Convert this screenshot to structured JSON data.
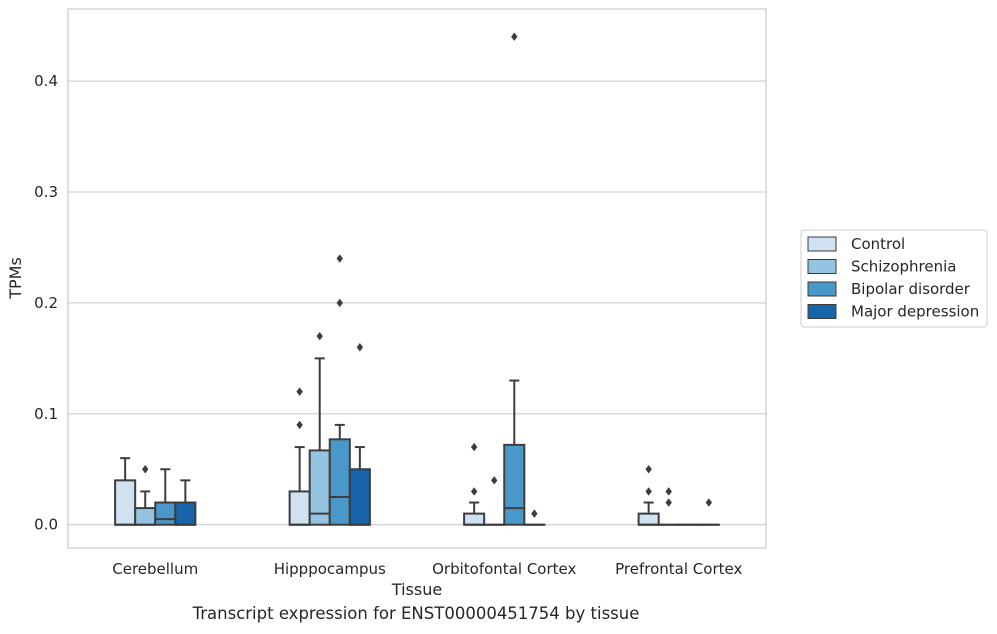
{
  "chart_data": {
    "type": "box",
    "xlabel": "Tissue",
    "ylabel": "TPMs",
    "ylim": [
      -0.021,
      0.465
    ],
    "yticks": [
      0.0,
      0.1,
      0.2,
      0.3,
      0.4
    ],
    "ytick_labels": [
      "0.0",
      "0.1",
      "0.2",
      "0.3",
      "0.4"
    ],
    "grid": "horizontal",
    "legend_position": "right",
    "categories": [
      "Cerebellum",
      "Hipppocampus",
      "Orbitofontal Cortex",
      "Prefrontal Cortex"
    ],
    "series": [
      {
        "name": "Control",
        "color": "#d0e1f2",
        "boxes": [
          {
            "q1": 0.0,
            "median": 0.0,
            "q3": 0.04,
            "whisker_low": 0.0,
            "whisker_high": 0.06,
            "outliers": []
          },
          {
            "q1": 0.0,
            "median": 0.0,
            "q3": 0.03,
            "whisker_low": 0.0,
            "whisker_high": 0.07,
            "outliers": [
              0.09,
              0.12
            ]
          },
          {
            "q1": 0.0,
            "median": 0.0,
            "q3": 0.01,
            "whisker_low": 0.0,
            "whisker_high": 0.02,
            "outliers": [
              0.03,
              0.07
            ]
          },
          {
            "q1": 0.0,
            "median": 0.0,
            "q3": 0.01,
            "whisker_low": 0.0,
            "whisker_high": 0.02,
            "outliers": [
              0.03,
              0.05
            ]
          }
        ]
      },
      {
        "name": "Schizophrenia",
        "color": "#94c4df",
        "boxes": [
          {
            "q1": 0.0,
            "median": 0.0,
            "q3": 0.015,
            "whisker_low": 0.0,
            "whisker_high": 0.03,
            "outliers": [
              0.05
            ]
          },
          {
            "q1": 0.0,
            "median": 0.01,
            "q3": 0.067,
            "whisker_low": 0.0,
            "whisker_high": 0.15,
            "outliers": [
              0.17
            ]
          },
          {
            "q1": 0.0,
            "median": 0.0,
            "q3": 0.0,
            "whisker_low": 0.0,
            "whisker_high": 0.0,
            "outliers": [
              0.04
            ]
          },
          {
            "q1": 0.0,
            "median": 0.0,
            "q3": 0.0,
            "whisker_low": 0.0,
            "whisker_high": 0.0,
            "outliers": [
              0.02,
              0.03
            ]
          }
        ]
      },
      {
        "name": "Bipolar disorder",
        "color": "#4a98c9",
        "boxes": [
          {
            "q1": 0.0,
            "median": 0.005,
            "q3": 0.02,
            "whisker_low": 0.0,
            "whisker_high": 0.05,
            "outliers": []
          },
          {
            "q1": 0.0,
            "median": 0.025,
            "q3": 0.077,
            "whisker_low": 0.0,
            "whisker_high": 0.09,
            "outliers": [
              0.2,
              0.24
            ]
          },
          {
            "q1": 0.0,
            "median": 0.015,
            "q3": 0.072,
            "whisker_low": 0.0,
            "whisker_high": 0.13,
            "outliers": [
              0.44
            ]
          },
          {
            "q1": 0.0,
            "median": 0.0,
            "q3": 0.0,
            "whisker_low": 0.0,
            "whisker_high": 0.0,
            "outliers": []
          }
        ]
      },
      {
        "name": "Major depression",
        "color": "#1764ab",
        "boxes": [
          {
            "q1": 0.0,
            "median": 0.0,
            "q3": 0.02,
            "whisker_low": 0.0,
            "whisker_high": 0.04,
            "outliers": []
          },
          {
            "q1": 0.0,
            "median": 0.0,
            "q3": 0.05,
            "whisker_low": 0.0,
            "whisker_high": 0.07,
            "outliers": [
              0.16
            ]
          },
          {
            "q1": 0.0,
            "median": 0.0,
            "q3": 0.0,
            "whisker_low": 0.0,
            "whisker_high": 0.0,
            "outliers": [
              0.01
            ]
          },
          {
            "q1": 0.0,
            "median": 0.0,
            "q3": 0.0,
            "whisker_low": 0.0,
            "whisker_high": 0.0,
            "outliers": [
              0.02
            ]
          }
        ]
      }
    ]
  },
  "caption": "Transcript expression for ENST00000451754 by tissue"
}
